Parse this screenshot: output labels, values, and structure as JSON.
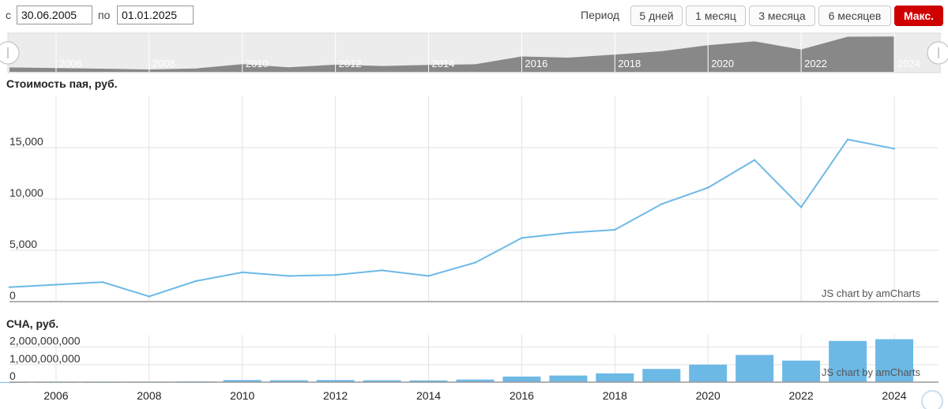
{
  "controls": {
    "from_label": "с",
    "from_date": "30.06.2005",
    "to_label": "по",
    "to_date": "01.01.2025",
    "period_label": "Период",
    "period_buttons": [
      "5 дней",
      "1 месяц",
      "3 месяца",
      "6 месяцев",
      "Макс."
    ],
    "active_period": "Макс."
  },
  "navigator": {
    "year_labels": [
      "2006",
      "2008",
      "2010",
      "2012",
      "2014",
      "2016",
      "2018",
      "2020",
      "2022",
      "2024"
    ]
  },
  "credit": "JS chart by amCharts",
  "colors": {
    "line": "#6db9e6",
    "bar": "#6db9e6",
    "active_button": "#d10000",
    "navigator": "#888888"
  },
  "chart_data": [
    {
      "type": "line",
      "title": "Стоимость пая, руб.",
      "x": [
        2005.0,
        2007.0,
        2008.0,
        2009.0,
        2010.0,
        2011.0,
        2012.0,
        2013.0,
        2014.0,
        2015.0,
        2016.0,
        2017.0,
        2018.0,
        2019.0,
        2020.0,
        2021.0,
        2022.0,
        2023.0,
        2024.0
      ],
      "values": [
        1400,
        1900,
        500,
        2000,
        2850,
        2500,
        2600,
        3050,
        2500,
        3800,
        6200,
        6700,
        7000,
        9500,
        11100,
        13800,
        9200,
        15800,
        14900
      ],
      "yticks": [
        "0",
        "5,000",
        "10,000",
        "15,000"
      ],
      "ylim": [
        0,
        20000
      ],
      "xticks": [
        "2006",
        "2008",
        "2010",
        "2012",
        "2014",
        "2016",
        "2018",
        "2020",
        "2022",
        "2024"
      ],
      "grid": true
    },
    {
      "type": "bar",
      "title": "СЧА, руб.",
      "x": [
        2005.0,
        2006.0,
        2007.0,
        2008.0,
        2009.0,
        2010.0,
        2011.0,
        2012.0,
        2013.0,
        2014.0,
        2015.0,
        2016.0,
        2017.0,
        2018.0,
        2019.0,
        2020.0,
        2021.0,
        2022.0,
        2023.0,
        2024.0
      ],
      "values": [
        5000000,
        8000000,
        10000000,
        15000000,
        40000000,
        120000000,
        110000000,
        120000000,
        110000000,
        100000000,
        150000000,
        320000000,
        380000000,
        500000000,
        750000000,
        1000000000,
        1550000000,
        1230000000,
        2350000000,
        2450000000
      ],
      "yticks": [
        "0",
        "1,000,000,000",
        "2,000,000,000"
      ],
      "ylim": [
        0,
        2700000000
      ],
      "xticks": [
        "2006",
        "2008",
        "2010",
        "2012",
        "2014",
        "2016",
        "2018",
        "2020",
        "2022",
        "2024"
      ],
      "grid": true
    }
  ]
}
